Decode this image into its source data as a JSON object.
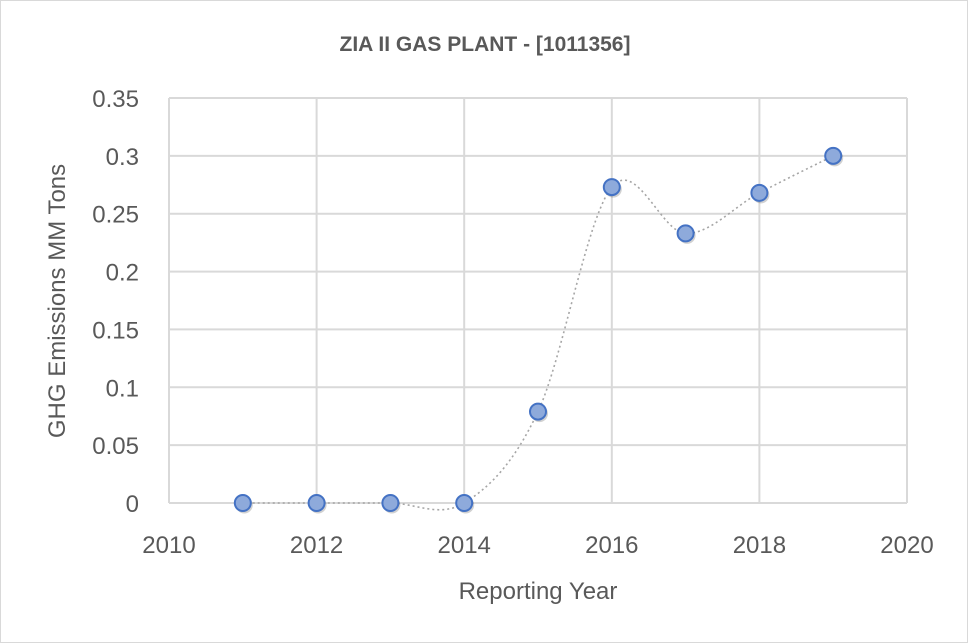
{
  "chart_data": {
    "type": "scatter",
    "title": "ZIA II GAS PLANT - [1011356]",
    "xlabel": "Reporting Year",
    "ylabel": "GHG Emissions MM Tons",
    "xlim": [
      2010,
      2020
    ],
    "ylim": [
      0,
      0.35
    ],
    "xticks": [
      2010,
      2012,
      2014,
      2016,
      2018,
      2020
    ],
    "yticks": [
      0,
      0.05,
      0.1,
      0.15,
      0.2,
      0.25,
      0.3,
      0.35
    ],
    "xtick_labels": [
      "2010",
      "2012",
      "2014",
      "2016",
      "2018",
      "2020"
    ],
    "ytick_labels": [
      "0",
      "0.05",
      "0.1",
      "0.15",
      "0.2",
      "0.25",
      "0.3",
      "0.35"
    ],
    "grid": true,
    "line_style": "smoothed dotted",
    "series": [
      {
        "name": "GHG Emissions",
        "x": [
          2011,
          2012,
          2013,
          2014,
          2015,
          2016,
          2017,
          2018,
          2019
        ],
        "y": [
          0,
          0,
          0,
          0,
          0.079,
          0.273,
          0.233,
          0.268,
          0.3
        ]
      }
    ],
    "colors": {
      "marker_fill": "#8eaadb",
      "marker_edge": "#4472c4",
      "line": "#a6a6a6",
      "grid": "#d9d9d9"
    }
  }
}
